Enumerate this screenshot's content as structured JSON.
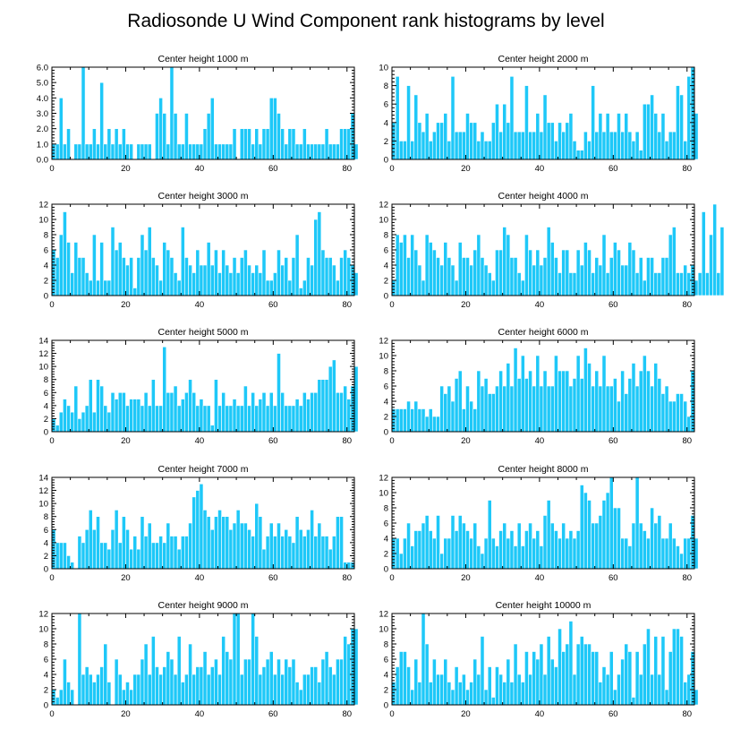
{
  "title": "Radiosonde U Wind Component rank histograms by level",
  "colors": {
    "bar": "#1ec8f8",
    "bar_edge": "#ffffff",
    "axis": "#000000",
    "background": "#ffffff"
  },
  "chart_data": [
    {
      "type": "bar",
      "title": "Center height 1000 m",
      "xlim": [
        0,
        82
      ],
      "ylim": [
        0,
        6
      ],
      "xticks": [
        0,
        20,
        40,
        60,
        80
      ],
      "yticks": [
        0,
        1,
        2,
        3,
        4,
        5,
        6
      ],
      "ytick_labels": [
        "0.0",
        "1.0",
        "2.0",
        "3.0",
        "4.0",
        "5.0",
        "6.0"
      ],
      "xlabel": "",
      "ylabel": "",
      "values": [
        1,
        1,
        4,
        1,
        2,
        0,
        1,
        1,
        6,
        1,
        1,
        2,
        1,
        5,
        1,
        2,
        1,
        2,
        1,
        2,
        1,
        1,
        0,
        1,
        1,
        1,
        1,
        0,
        3,
        4,
        3,
        1,
        6,
        3,
        1,
        1,
        3,
        1,
        1,
        1,
        1,
        2,
        3,
        4,
        1,
        1,
        1,
        1,
        1,
        2,
        0,
        2,
        2,
        2,
        1,
        2,
        1,
        2,
        2,
        4,
        4,
        3,
        2,
        1,
        2,
        2,
        1,
        1,
        2,
        1,
        1,
        1,
        1,
        1,
        2,
        1,
        1,
        1,
        2,
        2,
        2,
        3,
        1
      ]
    },
    {
      "type": "bar",
      "title": "Center height 2000 m",
      "xlim": [
        0,
        82
      ],
      "ylim": [
        0,
        10
      ],
      "xticks": [
        0,
        20,
        40,
        60,
        80
      ],
      "yticks": [
        0,
        2,
        4,
        6,
        8,
        10
      ],
      "xlabel": "",
      "ylabel": "",
      "values": [
        4,
        9,
        2,
        2,
        8,
        2,
        7,
        4,
        3,
        5,
        2,
        3,
        4,
        4,
        5,
        2,
        9,
        3,
        3,
        3,
        5,
        4,
        4,
        2,
        3,
        2,
        2,
        4,
        6,
        3,
        6,
        4,
        9,
        3,
        3,
        3,
        8,
        3,
        3,
        5,
        3,
        7,
        4,
        4,
        2,
        4,
        3,
        4,
        5,
        2,
        1,
        1,
        3,
        2,
        8,
        3,
        5,
        3,
        5,
        3,
        3,
        5,
        3,
        5,
        3,
        2,
        3,
        1,
        6,
        6,
        7,
        5,
        3,
        5,
        2,
        3,
        3,
        8,
        7,
        2,
        9,
        10,
        5
      ]
    },
    {
      "type": "bar",
      "title": "Center height 3000 m",
      "xlim": [
        0,
        82
      ],
      "ylim": [
        0,
        12
      ],
      "xticks": [
        0,
        20,
        40,
        60,
        80
      ],
      "yticks": [
        0,
        2,
        4,
        6,
        8,
        10,
        12
      ],
      "xlabel": "",
      "ylabel": "",
      "values": [
        6,
        5,
        8,
        11,
        7,
        3,
        7,
        5,
        5,
        3,
        2,
        8,
        2,
        7,
        2,
        2,
        9,
        6,
        7,
        5,
        4,
        5,
        1,
        5,
        8,
        6,
        9,
        5,
        4,
        2,
        7,
        6,
        5,
        3,
        2,
        9,
        5,
        4,
        3,
        6,
        4,
        4,
        7,
        4,
        6,
        3,
        6,
        4,
        3,
        5,
        3,
        5,
        6,
        4,
        3,
        4,
        3,
        6,
        2,
        2,
        3,
        6,
        4,
        5,
        2,
        5,
        8,
        1,
        2,
        5,
        4,
        10,
        11,
        6,
        5,
        5,
        4,
        2,
        5,
        6,
        5,
        4,
        3
      ]
    },
    {
      "type": "bar",
      "title": "Center height 4000 m",
      "xlim": [
        0,
        82
      ],
      "ylim": [
        0,
        12
      ],
      "xticks": [
        0,
        20,
        40,
        60,
        80
      ],
      "yticks": [
        0,
        2,
        4,
        6,
        8,
        10,
        12
      ],
      "xlabel": "",
      "ylabel": "",
      "values": [
        2,
        8,
        7,
        8,
        5,
        8,
        6,
        4,
        2,
        8,
        7,
        6,
        5,
        4,
        7,
        5,
        4,
        2,
        7,
        5,
        5,
        4,
        6,
        8,
        5,
        4,
        3,
        2,
        6,
        6,
        9,
        8,
        5,
        5,
        3,
        2,
        8,
        6,
        4,
        6,
        4,
        5,
        9,
        7,
        5,
        3,
        6,
        6,
        3,
        3,
        6,
        4,
        7,
        6,
        3,
        5,
        4,
        8,
        3,
        5,
        7,
        6,
        4,
        4,
        7,
        6,
        3,
        5,
        2,
        5,
        5,
        3,
        3,
        5,
        5,
        8,
        9,
        3,
        3,
        4,
        3,
        4,
        2,
        3,
        11,
        3,
        8,
        12,
        3,
        9
      ]
    },
    {
      "type": "bar",
      "title": "Center height 5000 m",
      "xlim": [
        0,
        82
      ],
      "ylim": [
        0,
        14
      ],
      "xticks": [
        0,
        20,
        40,
        60,
        80
      ],
      "yticks": [
        0,
        2,
        4,
        6,
        8,
        10,
        12,
        14
      ],
      "xlabel": "",
      "ylabel": "",
      "values": [
        2,
        1,
        3,
        5,
        4,
        3,
        7,
        2,
        3,
        4,
        8,
        3,
        8,
        7,
        4,
        3,
        6,
        5,
        6,
        6,
        4,
        5,
        5,
        5,
        4,
        6,
        4,
        8,
        4,
        4,
        13,
        6,
        6,
        7,
        4,
        5,
        6,
        8,
        6,
        4,
        5,
        4,
        4,
        1,
        8,
        4,
        6,
        4,
        4,
        5,
        4,
        4,
        7,
        4,
        6,
        4,
        5,
        6,
        4,
        6,
        4,
        12,
        6,
        4,
        4,
        4,
        5,
        4,
        6,
        5,
        6,
        6,
        8,
        8,
        8,
        10,
        11,
        6,
        6,
        7,
        5,
        7,
        10
      ]
    },
    {
      "type": "bar",
      "title": "Center height 6000 m",
      "xlim": [
        0,
        82
      ],
      "ylim": [
        0,
        12
      ],
      "xticks": [
        0,
        20,
        40,
        60,
        80
      ],
      "yticks": [
        0,
        2,
        4,
        6,
        8,
        10,
        12
      ],
      "xlabel": "",
      "ylabel": "",
      "values": [
        3,
        3,
        3,
        3,
        4,
        3,
        4,
        3,
        3,
        2,
        3,
        2,
        2,
        6,
        5,
        6,
        4,
        7,
        8,
        3,
        6,
        4,
        3,
        8,
        6,
        7,
        5,
        5,
        6,
        8,
        6,
        9,
        6,
        11,
        7,
        10,
        7,
        8,
        6,
        10,
        6,
        8,
        6,
        6,
        10,
        8,
        8,
        8,
        6,
        7,
        10,
        7,
        11,
        9,
        6,
        8,
        6,
        10,
        6,
        6,
        7,
        4,
        8,
        5,
        7,
        9,
        6,
        8,
        10,
        8,
        6,
        9,
        7,
        5,
        6,
        4,
        4,
        5,
        5,
        4,
        2,
        8
      ]
    },
    {
      "type": "bar",
      "title": "Center height 7000 m",
      "xlim": [
        0,
        82
      ],
      "ylim": [
        0,
        14
      ],
      "xticks": [
        0,
        20,
        40,
        60,
        80
      ],
      "yticks": [
        0,
        2,
        4,
        6,
        8,
        10,
        12,
        14
      ],
      "xlabel": "",
      "ylabel": "",
      "values": [
        6,
        4,
        4,
        4,
        2,
        1,
        0,
        5,
        4,
        6,
        9,
        6,
        8,
        4,
        4,
        3,
        6,
        9,
        4,
        8,
        6,
        3,
        5,
        3,
        8,
        5,
        7,
        4,
        4,
        5,
        4,
        7,
        5,
        5,
        3,
        5,
        5,
        7,
        11,
        12,
        13,
        9,
        8,
        6,
        8,
        9,
        8,
        8,
        6,
        7,
        9,
        7,
        7,
        6,
        5,
        10,
        8,
        3,
        5,
        7,
        5,
        7,
        5,
        6,
        5,
        4,
        8,
        6,
        5,
        6,
        9,
        5,
        7,
        5,
        5,
        3,
        5,
        8,
        8,
        1,
        1,
        1
      ]
    },
    {
      "type": "bar",
      "title": "Center height 8000 m",
      "xlim": [
        0,
        82
      ],
      "ylim": [
        0,
        12
      ],
      "xticks": [
        0,
        20,
        40,
        60,
        80
      ],
      "yticks": [
        0,
        2,
        4,
        6,
        8,
        10,
        12
      ],
      "xlabel": "",
      "ylabel": "",
      "values": [
        4,
        4,
        2,
        4,
        6,
        3,
        5,
        5,
        6,
        7,
        5,
        4,
        7,
        2,
        4,
        4,
        7,
        5,
        7,
        6,
        5,
        4,
        6,
        3,
        2,
        4,
        9,
        4,
        3,
        5,
        6,
        4,
        5,
        3,
        6,
        3,
        5,
        6,
        4,
        5,
        3,
        7,
        9,
        6,
        5,
        4,
        6,
        4,
        5,
        4,
        5,
        11,
        10,
        9,
        6,
        6,
        7,
        9,
        10,
        12,
        8,
        8,
        4,
        4,
        3,
        6,
        12,
        6,
        5,
        4,
        8,
        6,
        7,
        4,
        4,
        6,
        4,
        3,
        2,
        4,
        4,
        7,
        4
      ]
    },
    {
      "type": "bar",
      "title": "Center height 9000 m",
      "xlim": [
        0,
        82
      ],
      "ylim": [
        0,
        12
      ],
      "xticks": [
        0,
        20,
        40,
        60,
        80
      ],
      "yticks": [
        0,
        2,
        4,
        6,
        8,
        10,
        12
      ],
      "xlabel": "",
      "ylabel": "",
      "values": [
        2,
        1,
        2,
        6,
        3,
        2,
        0,
        12,
        4,
        5,
        4,
        3,
        4,
        5,
        8,
        3,
        0,
        6,
        4,
        2,
        3,
        2,
        4,
        4,
        6,
        8,
        4,
        9,
        5,
        4,
        5,
        7,
        6,
        4,
        9,
        3,
        4,
        8,
        4,
        5,
        5,
        7,
        4,
        5,
        6,
        4,
        9,
        7,
        6,
        12,
        12,
        4,
        6,
        6,
        12,
        9,
        4,
        5,
        6,
        7,
        4,
        6,
        4,
        6,
        5,
        6,
        3,
        2,
        4,
        4,
        5,
        5,
        3,
        6,
        7,
        5,
        4,
        6,
        6,
        9,
        8,
        10,
        10
      ]
    },
    {
      "type": "bar",
      "title": "Center height 10000 m",
      "xlim": [
        0,
        82
      ],
      "ylim": [
        0,
        12
      ],
      "xticks": [
        0,
        20,
        40,
        60,
        80
      ],
      "yticks": [
        0,
        2,
        4,
        6,
        8,
        10,
        12
      ],
      "xlabel": "",
      "ylabel": "",
      "values": [
        3,
        5,
        7,
        7,
        5,
        2,
        6,
        3,
        12,
        8,
        3,
        6,
        4,
        4,
        6,
        3,
        2,
        5,
        3,
        4,
        2,
        3,
        6,
        4,
        9,
        2,
        5,
        1,
        5,
        4,
        3,
        6,
        3,
        8,
        4,
        3,
        7,
        4,
        7,
        6,
        8,
        4,
        9,
        6,
        5,
        10,
        7,
        8,
        11,
        4,
        8,
        9,
        8,
        8,
        7,
        7,
        3,
        5,
        4,
        7,
        2,
        4,
        6,
        8,
        7,
        1,
        7,
        4,
        8,
        10,
        4,
        9,
        4,
        9,
        2,
        7,
        10,
        10,
        9,
        3,
        4,
        7,
        2
      ]
    }
  ]
}
